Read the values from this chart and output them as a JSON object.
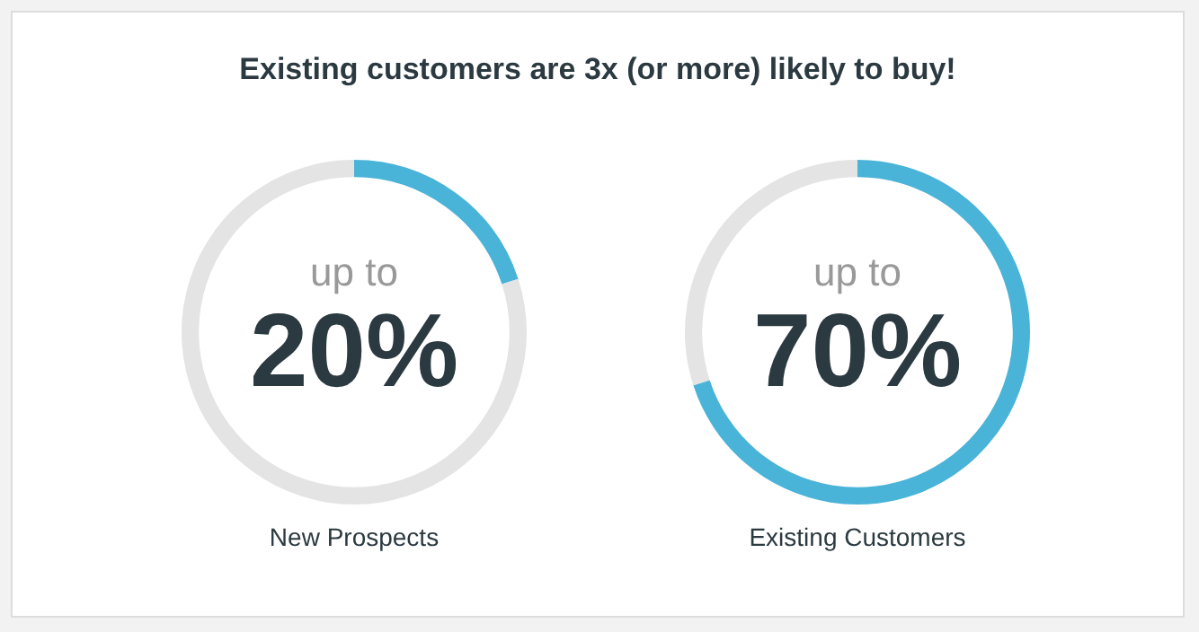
{
  "chart_data": [
    {
      "type": "other",
      "title": "Existing customers are 3x (or more) likely to buy!"
    },
    {
      "type": "donut",
      "categories": [
        null,
        null
      ],
      "values": [
        20,
        80
      ],
      "colors": [
        "#4ab3d8",
        "#e4e4e4"
      ],
      "annotations": [
        "up to",
        "20%"
      ],
      "xlabel": "New Prospects",
      "legend": false
    },
    {
      "type": "donut",
      "categories": [
        null,
        null
      ],
      "values": [
        70,
        30
      ],
      "colors": [
        "#4ab3d8",
        "#e4e4e4"
      ],
      "annotations": [
        "up to",
        "70%"
      ],
      "xlabel": "Existing Customers",
      "legend": false
    }
  ]
}
